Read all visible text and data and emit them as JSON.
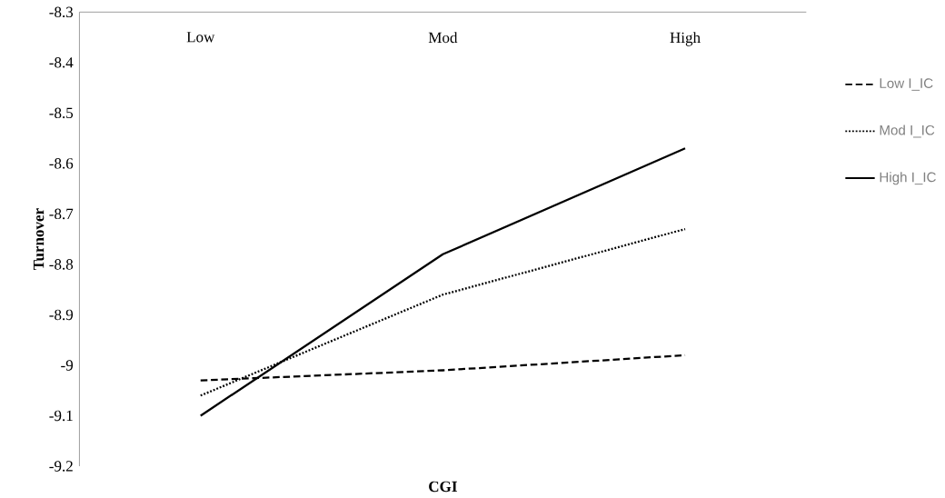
{
  "chart_data": {
    "type": "line",
    "xlabel": "CGI",
    "ylabel": "Turnover",
    "categories": [
      "Low",
      "Mod",
      "High"
    ],
    "series": [
      {
        "name": "Low I_IC",
        "color": "#000000",
        "line_style": "dashed",
        "values": [
          -9.03,
          -9.01,
          -8.98
        ]
      },
      {
        "name": "Mod I_IC",
        "color": "#000000",
        "line_style": "dotted",
        "values": [
          -9.06,
          -8.86,
          -8.73
        ]
      },
      {
        "name": "High I_IC",
        "color": "#000000",
        "line_style": "solid",
        "values": [
          -9.1,
          -8.78,
          -8.57
        ]
      }
    ],
    "ylim": [
      -9.2,
      -8.3
    ],
    "yticks": [
      -9.2,
      -9.1,
      -9,
      -8.9,
      -8.8,
      -8.7,
      -8.6,
      -8.5,
      -8.4,
      -8.3
    ],
    "grid": false,
    "legend": "right",
    "marker": "none"
  }
}
